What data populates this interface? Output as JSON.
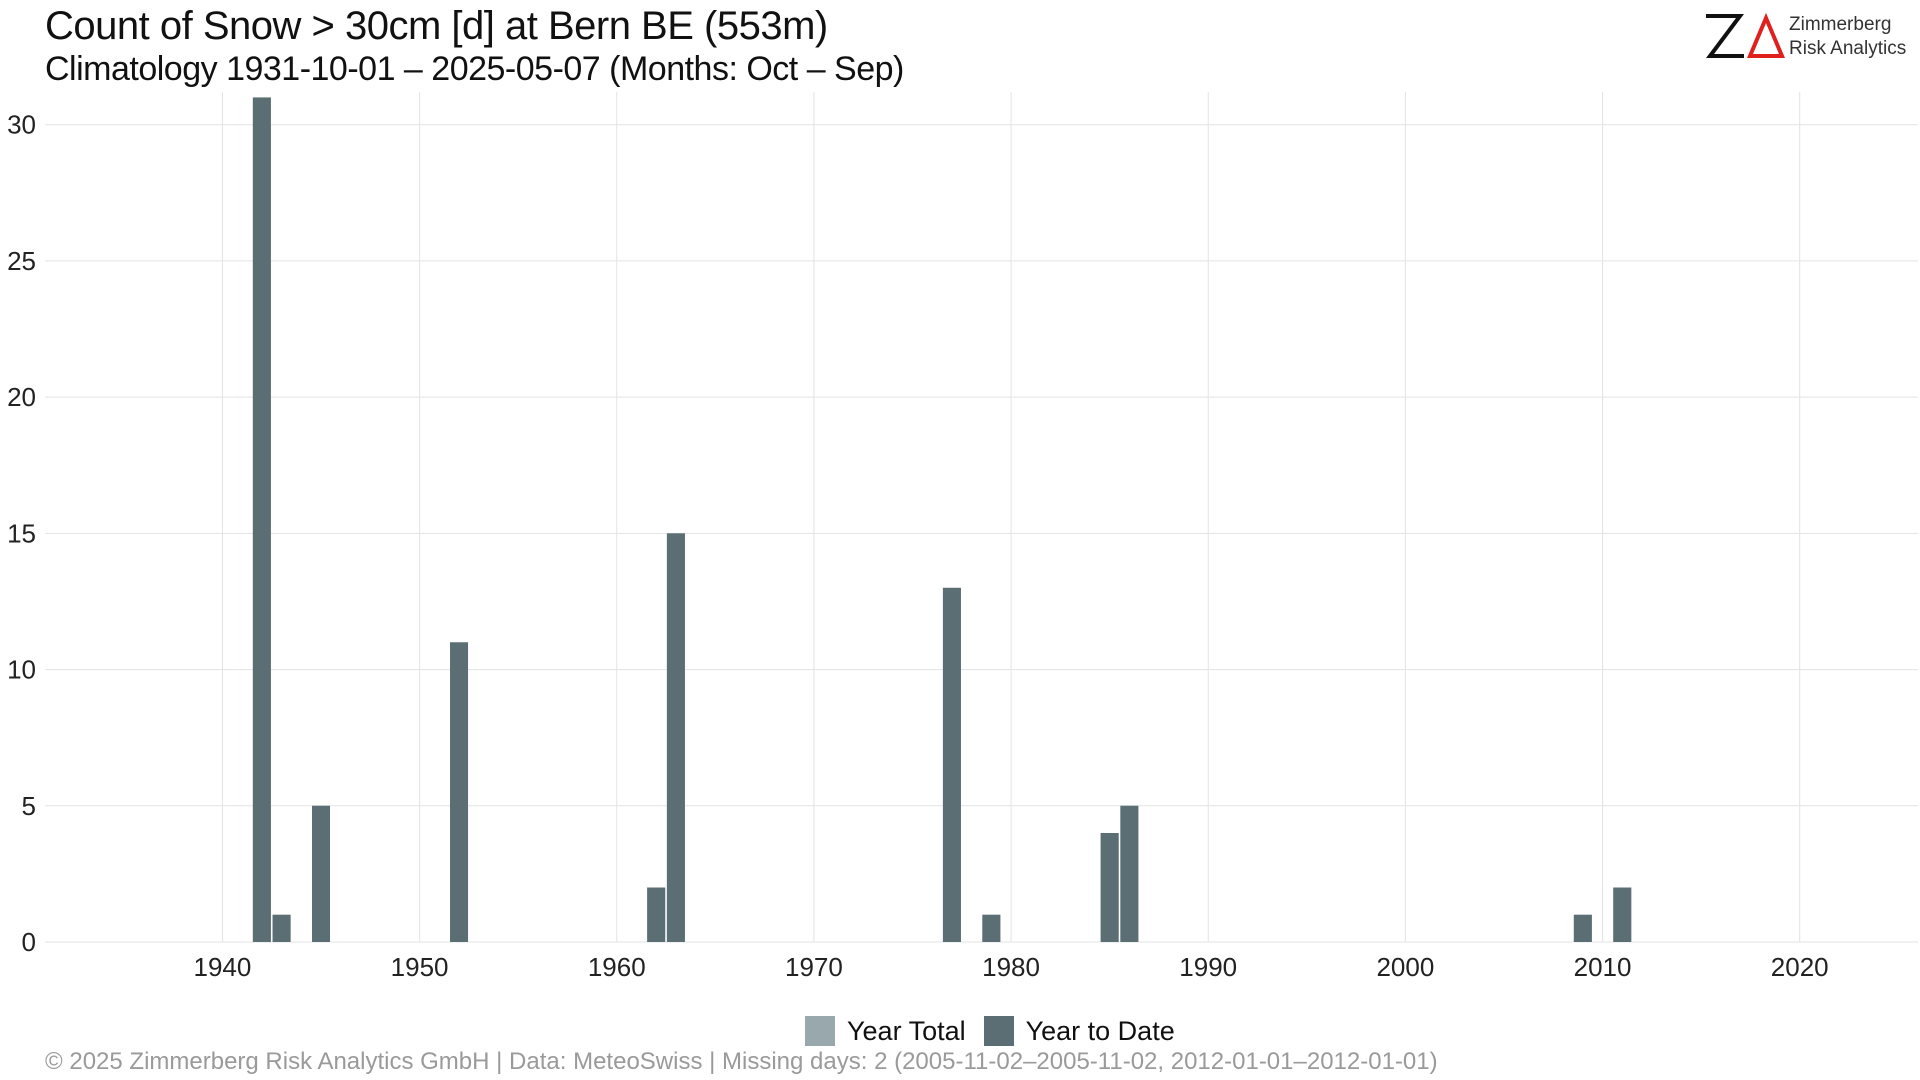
{
  "header": {
    "title": "Count of Snow > 30cm [d] at Bern  BE (553m)",
    "subtitle": "Climatology 1931-10-01 – 2025-05-07 (Months: Oct – Sep)"
  },
  "logo": {
    "mark": "ZΔ",
    "line1": "Zimmerberg",
    "line2": "Risk Analytics"
  },
  "footer": {
    "text": "©  2025 Zimmerberg Risk Analytics GmbH | Data: MeteoSwiss | Missing days: 2 (2005-11-02–2005-11-02, 2012-01-01–2012-01-01)"
  },
  "colors": {
    "year_total": "#98a8ad",
    "year_to_date": "#5b6e74",
    "grid": "#e3e3e3"
  },
  "chart_data": {
    "type": "bar",
    "title": "Count of Snow > 30cm [d] at Bern  BE (553m)",
    "subtitle": "Climatology 1931-10-01 – 2025-05-07 (Months: Oct – Sep)",
    "xlim": [
      1931,
      2026
    ],
    "ylim": [
      0,
      31.2
    ],
    "x_ticks": [
      1940,
      1950,
      1960,
      1970,
      1980,
      1990,
      2000,
      2010,
      2020
    ],
    "y_ticks": [
      0,
      5,
      10,
      15,
      20,
      25,
      30
    ],
    "grid": true,
    "legend_position": "bottom",
    "series": [
      {
        "name": "Year Total",
        "color": "#98a8ad",
        "x": [
          1942,
          1943,
          1945,
          1952,
          1962,
          1963,
          1977,
          1979,
          1985,
          1986,
          2009,
          2011
        ],
        "values": [
          31,
          1,
          5,
          11,
          2,
          15,
          13,
          1,
          4,
          5,
          1,
          2
        ]
      },
      {
        "name": "Year to Date",
        "color": "#5b6e74",
        "x": [
          1942,
          1943,
          1945,
          1952,
          1962,
          1963,
          1977,
          1979,
          1985,
          1986,
          2009,
          2011
        ],
        "values": [
          31,
          1,
          5,
          11,
          2,
          15,
          13,
          1,
          4,
          5,
          1,
          2
        ]
      }
    ]
  }
}
